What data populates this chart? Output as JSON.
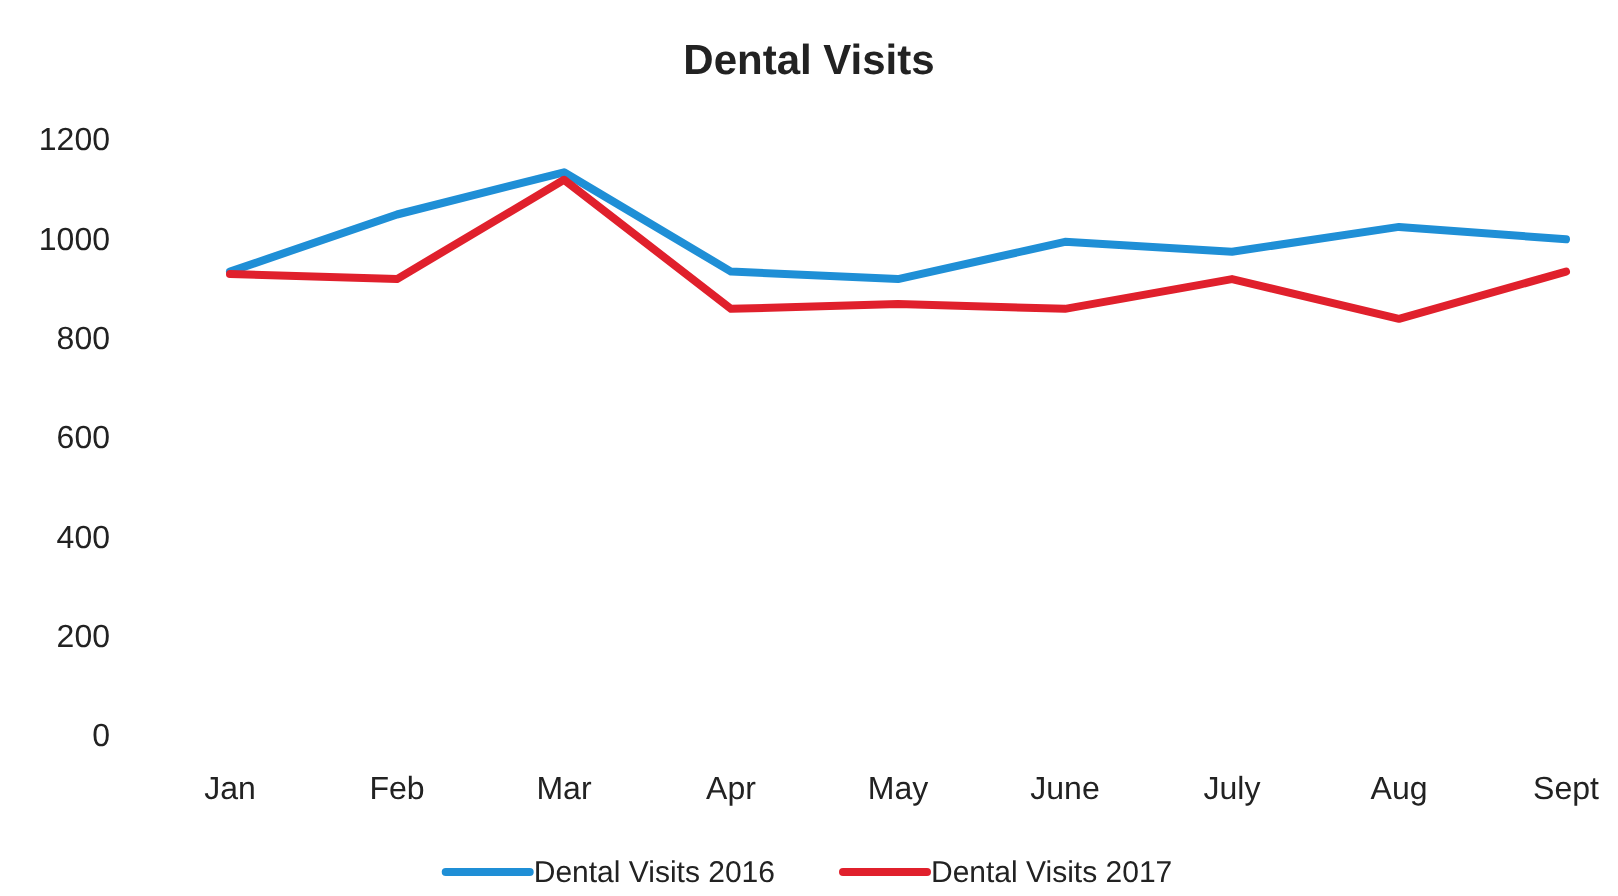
{
  "chart_data": {
    "type": "line",
    "title": "Dental Visits",
    "categories": [
      "Jan",
      "Feb",
      "Mar",
      "Apr",
      "May",
      "June",
      "July",
      "Aug",
      "Sept"
    ],
    "series": [
      {
        "name": "Dental Visits 2016",
        "color": "#1f8fd6",
        "values": [
          935,
          1050,
          1135,
          935,
          920,
          995,
          975,
          1025,
          1000
        ]
      },
      {
        "name": "Dental Visits 2017",
        "color": "#e0202c",
        "values": [
          930,
          920,
          1120,
          860,
          870,
          860,
          920,
          840,
          935
        ]
      }
    ],
    "ylim": [
      0,
      1200
    ],
    "yticks": [
      0,
      200,
      400,
      600,
      800,
      1000,
      1200
    ],
    "grid": false,
    "legend": "bottom",
    "marker": "none",
    "line_style": "solid"
  }
}
